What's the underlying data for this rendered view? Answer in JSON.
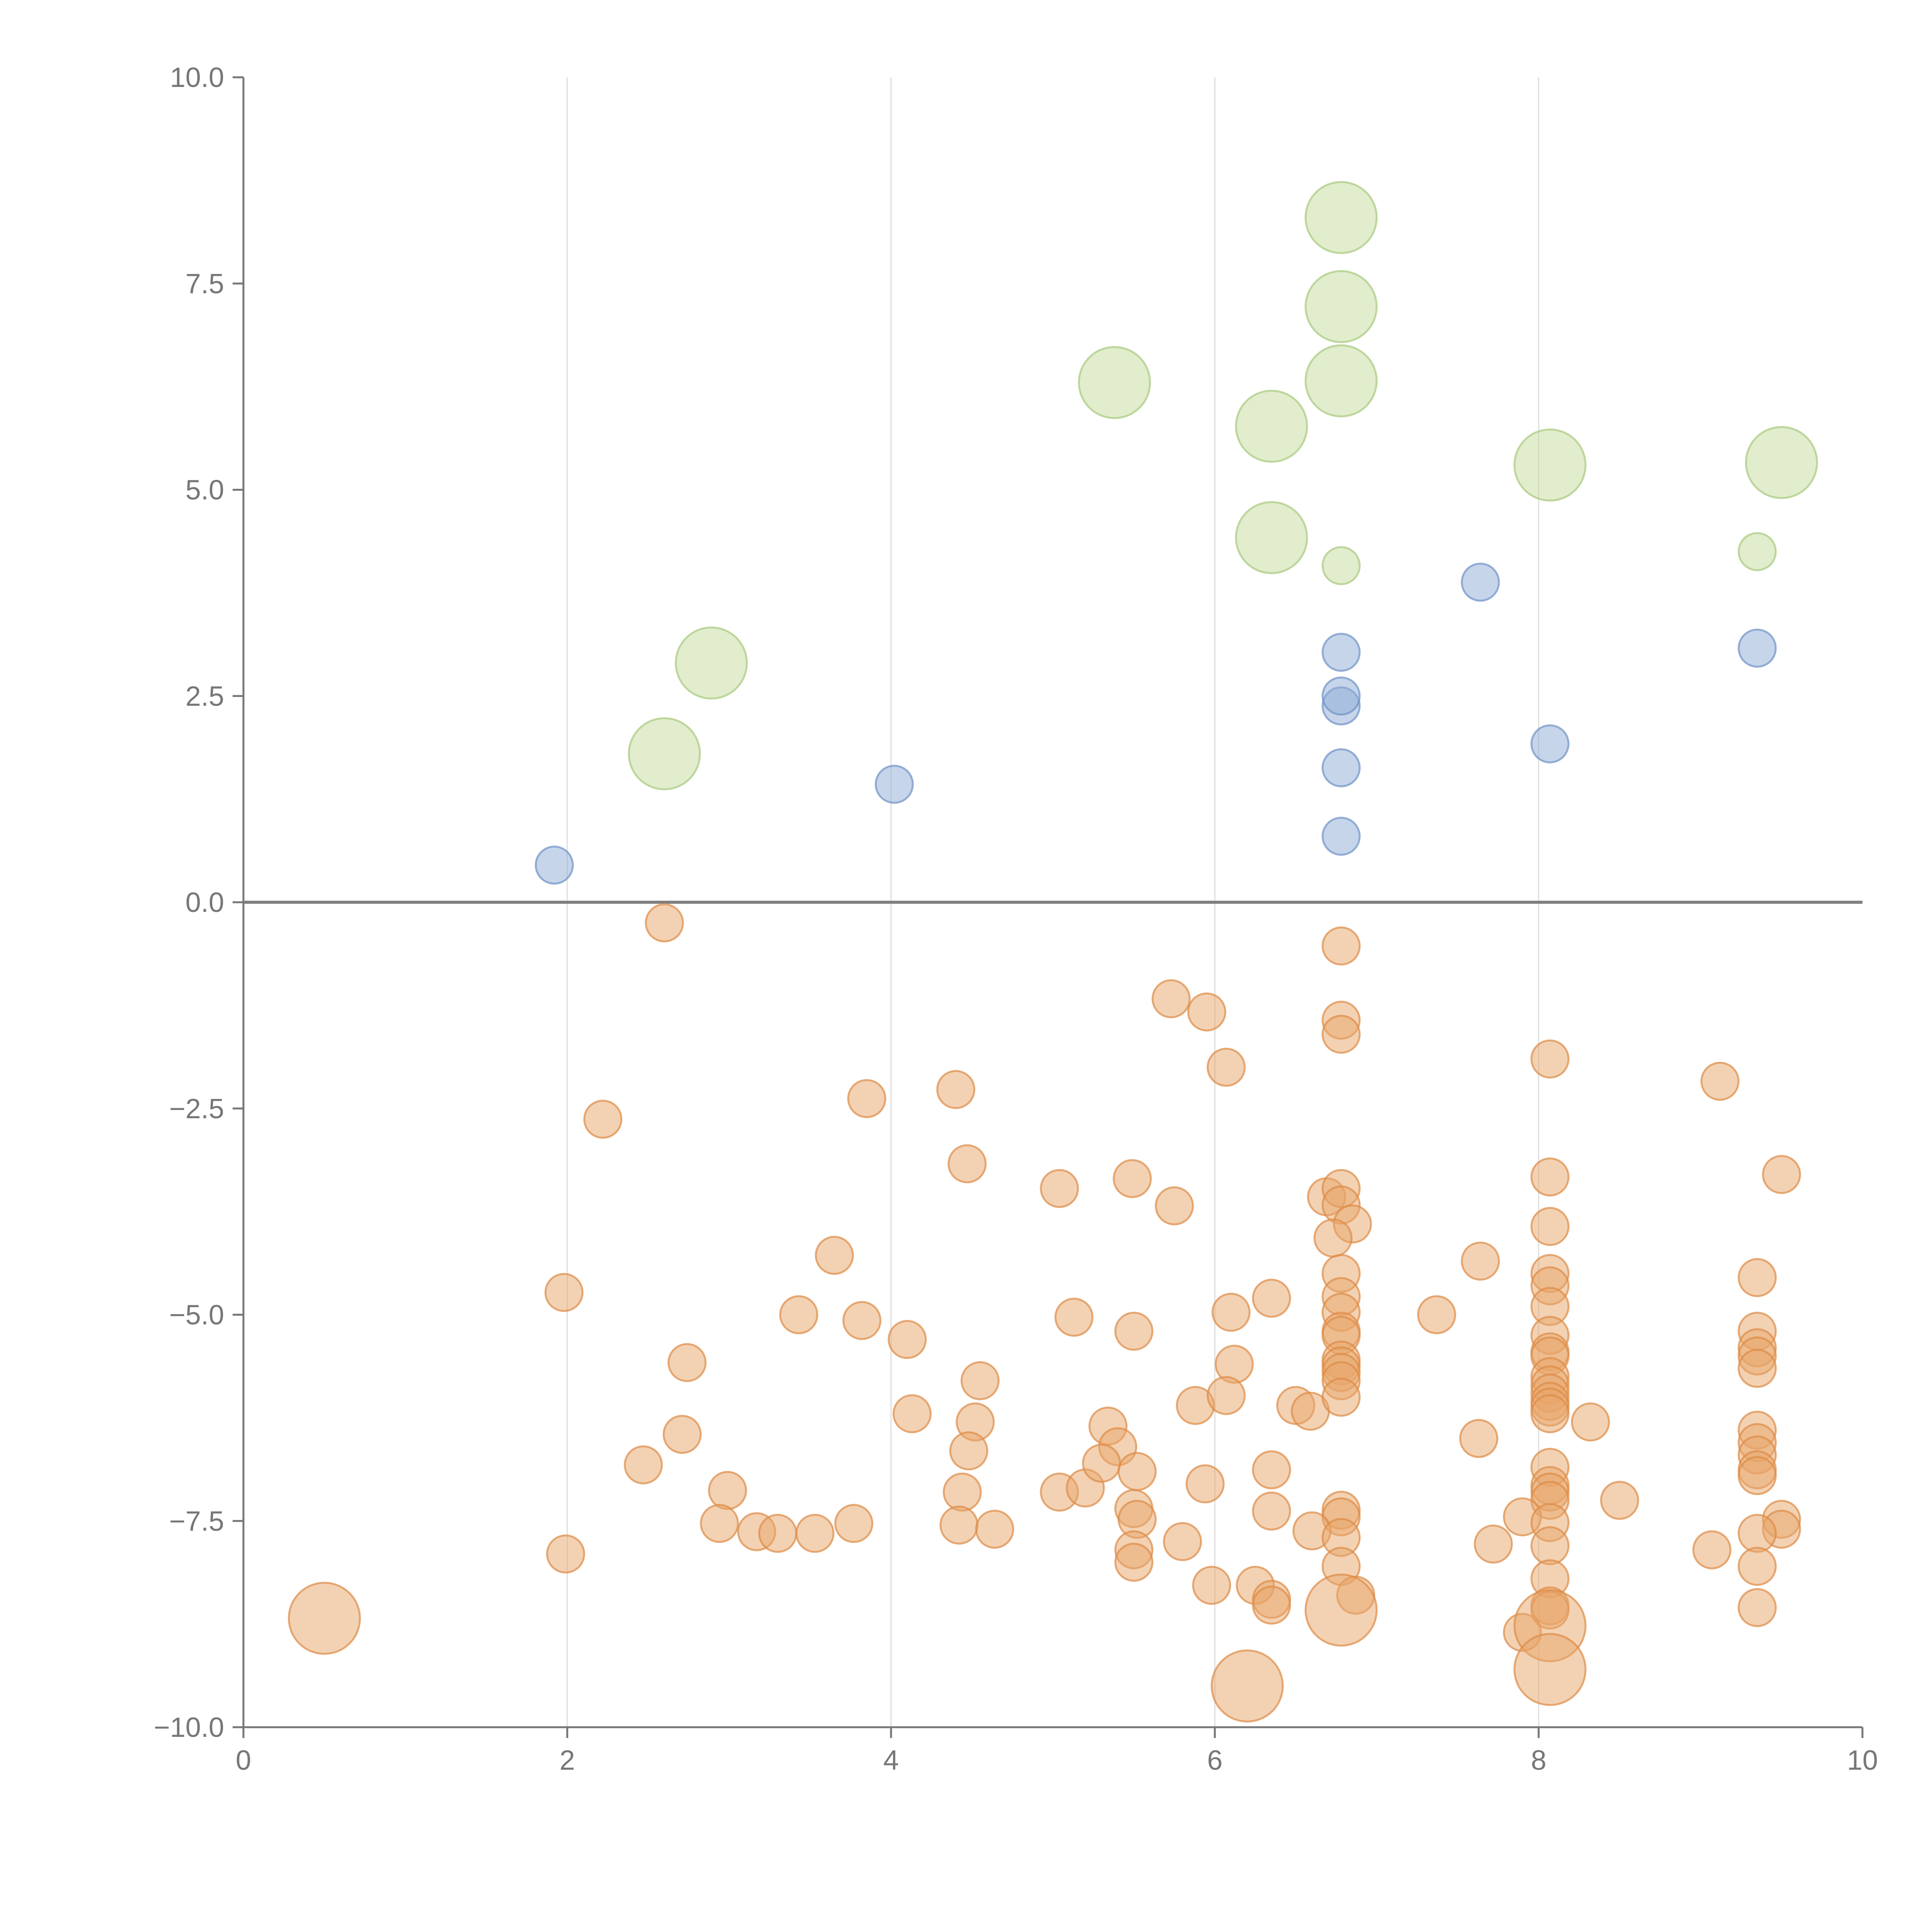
{
  "chart_data": {
    "type": "scatter",
    "title": "",
    "xlabel": "",
    "ylabel": "",
    "xlim": [
      0,
      10
    ],
    "ylim": [
      -10,
      10
    ],
    "x_ticks": [
      "0",
      "2",
      "4",
      "6",
      "8",
      "10"
    ],
    "y_ticks": [
      "10.0",
      "7.5",
      "5.0",
      "2.5",
      "0.0",
      "−2.5",
      "−5.0",
      "−7.5",
      "−10.0"
    ],
    "grid": {
      "vertical": true,
      "horizontal": false
    },
    "legend": "none",
    "series": [
      {
        "color": "#e8a56a",
        "stroke": "#dd8a44",
        "points": [
          [
            2.6,
            -0.25,
            1
          ],
          [
            6.78,
            -0.53,
            1
          ],
          [
            5.73,
            -1.17,
            1
          ],
          [
            5.95,
            -1.33,
            1
          ],
          [
            6.78,
            -1.43,
            1
          ],
          [
            6.78,
            -1.6,
            1
          ],
          [
            6.07,
            -2.0,
            1
          ],
          [
            8.07,
            -1.9,
            1
          ],
          [
            9.12,
            -2.17,
            1
          ],
          [
            2.22,
            -2.63,
            1
          ],
          [
            3.85,
            -2.38,
            1
          ],
          [
            4.4,
            -2.27,
            1
          ],
          [
            4.47,
            -3.17,
            1
          ],
          [
            5.04,
            -3.47,
            1
          ],
          [
            5.49,
            -3.35,
            1
          ],
          [
            5.75,
            -3.68,
            1
          ],
          [
            6.69,
            -3.57,
            1
          ],
          [
            6.78,
            -3.47,
            1
          ],
          [
            6.78,
            -3.67,
            1
          ],
          [
            6.85,
            -3.9,
            1
          ],
          [
            6.73,
            -4.07,
            1
          ],
          [
            8.07,
            -3.33,
            1
          ],
          [
            8.07,
            -3.93,
            1
          ],
          [
            9.5,
            -3.3,
            1
          ],
          [
            3.65,
            -4.28,
            1
          ],
          [
            6.78,
            -4.5,
            1
          ],
          [
            7.64,
            -4.35,
            1
          ],
          [
            8.07,
            -4.5,
            1
          ],
          [
            8.07,
            -4.65,
            1
          ],
          [
            9.35,
            -4.55,
            1
          ],
          [
            1.98,
            -4.73,
            1
          ],
          [
            3.43,
            -5.0,
            1
          ],
          [
            3.82,
            -5.07,
            1
          ],
          [
            4.1,
            -5.3,
            1
          ],
          [
            5.13,
            -5.03,
            1
          ],
          [
            5.5,
            -5.2,
            1
          ],
          [
            6.1,
            -4.97,
            1
          ],
          [
            6.35,
            -4.8,
            1
          ],
          [
            6.78,
            -4.78,
            1
          ],
          [
            6.78,
            -4.97,
            1
          ],
          [
            6.78,
            -5.2,
            1
          ],
          [
            6.78,
            -5.25,
            1
          ],
          [
            7.37,
            -5.0,
            1
          ],
          [
            8.07,
            -4.9,
            1
          ],
          [
            8.07,
            -5.25,
            1
          ],
          [
            8.07,
            -5.45,
            1
          ],
          [
            8.07,
            -5.5,
            1
          ],
          [
            9.35,
            -5.2,
            1
          ],
          [
            9.35,
            -5.4,
            1
          ],
          [
            9.35,
            -5.5,
            1
          ],
          [
            2.74,
            -5.58,
            1
          ],
          [
            4.55,
            -5.8,
            1
          ],
          [
            6.12,
            -5.6,
            1
          ],
          [
            6.78,
            -5.55,
            1
          ],
          [
            6.78,
            -5.62,
            1
          ],
          [
            6.78,
            -5.7,
            1
          ],
          [
            6.78,
            -5.8,
            1
          ],
          [
            8.07,
            -5.75,
            1
          ],
          [
            8.07,
            -5.85,
            1
          ],
          [
            8.07,
            -5.95,
            1
          ],
          [
            9.35,
            -5.65,
            1
          ],
          [
            4.13,
            -6.2,
            1
          ],
          [
            4.52,
            -6.3,
            1
          ],
          [
            5.88,
            -6.1,
            1
          ],
          [
            6.07,
            -5.98,
            1
          ],
          [
            6.5,
            -6.1,
            1
          ],
          [
            6.59,
            -6.17,
            1
          ],
          [
            6.78,
            -6.0,
            1
          ],
          [
            8.07,
            -6.05,
            1
          ],
          [
            8.07,
            -6.12,
            1
          ],
          [
            8.07,
            -6.2,
            1
          ],
          [
            8.32,
            -6.3,
            1
          ],
          [
            2.71,
            -6.45,
            1
          ],
          [
            4.48,
            -6.65,
            1
          ],
          [
            5.34,
            -6.35,
            1
          ],
          [
            5.4,
            -6.6,
            1
          ],
          [
            7.63,
            -6.5,
            1
          ],
          [
            9.35,
            -6.4,
            1
          ],
          [
            9.35,
            -6.55,
            1
          ],
          [
            9.35,
            -6.7,
            1
          ],
          [
            2.47,
            -6.82,
            1
          ],
          [
            2.99,
            -7.13,
            1
          ],
          [
            4.44,
            -7.15,
            1
          ],
          [
            5.04,
            -7.15,
            1
          ],
          [
            5.2,
            -7.1,
            1
          ],
          [
            5.3,
            -6.8,
            1
          ],
          [
            5.52,
            -6.9,
            1
          ],
          [
            5.94,
            -7.05,
            1
          ],
          [
            6.35,
            -6.88,
            1
          ],
          [
            8.07,
            -6.85,
            1
          ],
          [
            8.07,
            -7.07,
            1
          ],
          [
            8.07,
            -7.15,
            1
          ],
          [
            8.07,
            -7.25,
            1
          ],
          [
            8.5,
            -7.25,
            1
          ],
          [
            9.35,
            -6.88,
            1
          ],
          [
            9.35,
            -6.95,
            1
          ],
          [
            2.94,
            -7.53,
            1
          ],
          [
            3.17,
            -7.63,
            1
          ],
          [
            3.3,
            -7.65,
            1
          ],
          [
            3.53,
            -7.65,
            1
          ],
          [
            3.77,
            -7.53,
            1
          ],
          [
            4.42,
            -7.55,
            1
          ],
          [
            4.64,
            -7.6,
            1
          ],
          [
            5.5,
            -7.35,
            1
          ],
          [
            5.52,
            -7.48,
            1
          ],
          [
            6.35,
            -7.38,
            1
          ],
          [
            6.78,
            -7.37,
            1
          ],
          [
            6.78,
            -7.45,
            1
          ],
          [
            7.9,
            -7.45,
            1
          ],
          [
            8.07,
            -7.52,
            1
          ],
          [
            9.5,
            -7.48,
            1
          ],
          [
            9.5,
            -7.6,
            1
          ],
          [
            1.99,
            -7.9,
            1
          ],
          [
            5.5,
            -7.85,
            1
          ],
          [
            5.5,
            -8.0,
            1
          ],
          [
            5.8,
            -7.75,
            1
          ],
          [
            6.6,
            -7.62,
            1
          ],
          [
            6.78,
            -7.7,
            1
          ],
          [
            7.72,
            -7.78,
            1
          ],
          [
            8.07,
            -7.8,
            1
          ],
          [
            9.07,
            -7.85,
            1
          ],
          [
            9.35,
            -7.65,
            1
          ],
          [
            9.35,
            -8.05,
            1
          ],
          [
            5.98,
            -8.28,
            1
          ],
          [
            6.25,
            -8.28,
            1
          ],
          [
            6.35,
            -8.45,
            1
          ],
          [
            6.35,
            -8.52,
            1
          ],
          [
            6.78,
            -8.05,
            1
          ],
          [
            6.87,
            -8.4,
            1
          ],
          [
            8.07,
            -8.2,
            1
          ],
          [
            8.07,
            -8.53,
            1
          ],
          [
            8.07,
            -8.58,
            1
          ],
          [
            7.9,
            -8.85,
            1
          ],
          [
            9.35,
            -8.55,
            1
          ],
          [
            0.5,
            -8.68,
            2
          ],
          [
            6.78,
            -8.58,
            2
          ],
          [
            8.07,
            -8.77,
            2
          ],
          [
            8.07,
            -9.3,
            2
          ],
          [
            6.2,
            -9.5,
            2
          ]
        ]
      },
      {
        "color": "#8eacd6",
        "stroke": "#6f91c6",
        "points": [
          [
            1.92,
            0.45
          ],
          [
            4.02,
            1.43
          ],
          [
            6.78,
            0.8
          ],
          [
            6.78,
            1.63
          ],
          [
            6.78,
            2.38
          ],
          [
            6.78,
            2.5
          ],
          [
            6.78,
            3.03
          ],
          [
            7.64,
            3.88
          ],
          [
            8.07,
            1.92
          ],
          [
            9.35,
            3.08
          ]
        ]
      },
      {
        "color": "#c3db9c",
        "stroke": "#a8c97d",
        "points": [
          [
            2.6,
            1.8,
            2
          ],
          [
            2.89,
            2.9,
            2
          ],
          [
            5.38,
            6.3,
            2
          ],
          [
            6.35,
            5.77,
            2
          ],
          [
            6.35,
            4.42,
            2
          ],
          [
            6.78,
            8.3,
            2
          ],
          [
            6.78,
            7.22,
            2
          ],
          [
            6.78,
            6.32,
            2
          ],
          [
            8.07,
            5.3,
            2
          ],
          [
            9.5,
            5.33,
            2
          ],
          [
            6.78,
            4.08,
            1
          ],
          [
            9.35,
            4.25,
            1
          ]
        ]
      }
    ]
  }
}
